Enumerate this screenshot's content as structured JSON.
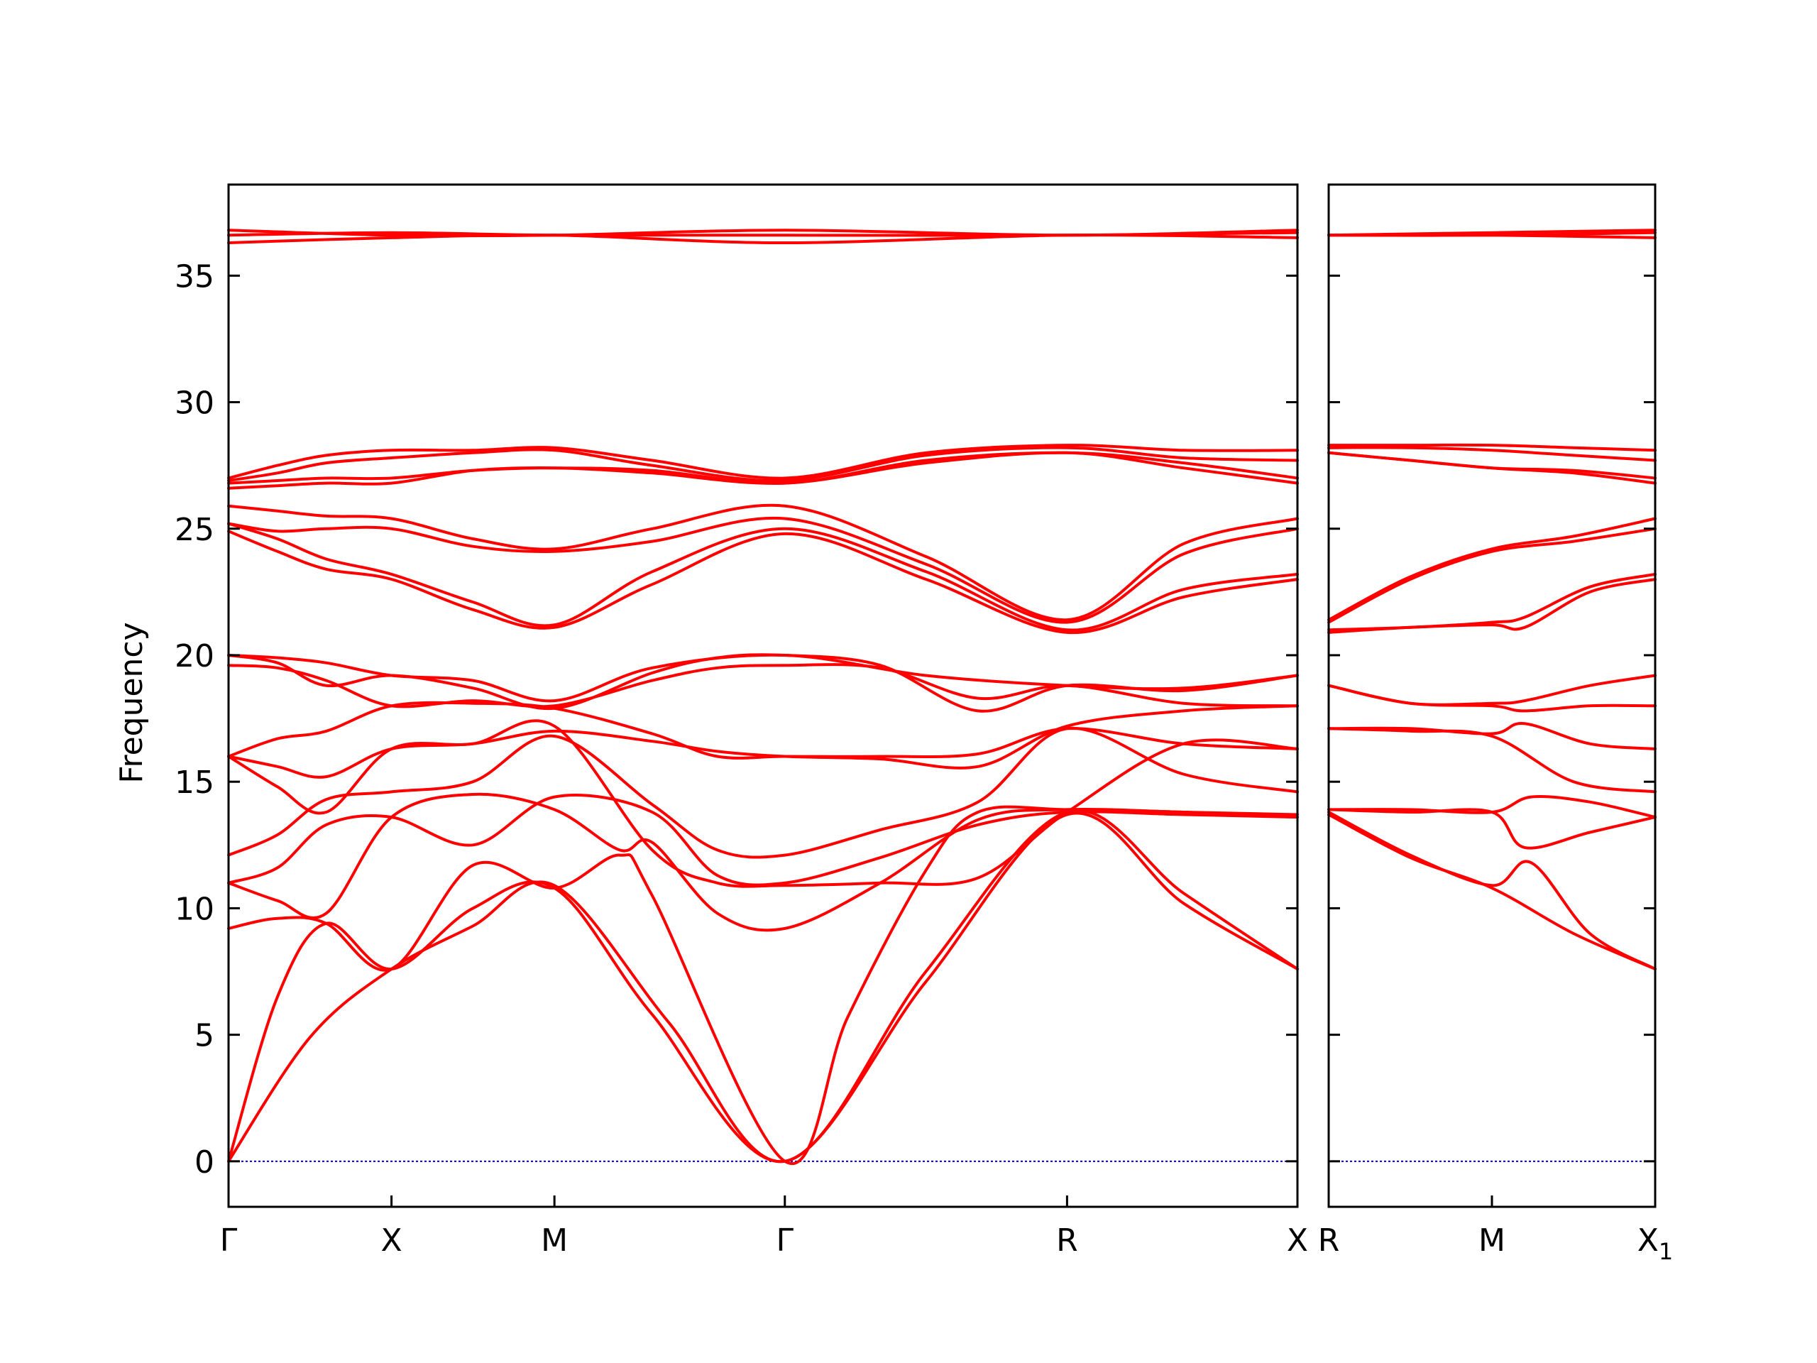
{
  "chart_data": {
    "type": "line",
    "ylabel": "Frequency",
    "ylim": [
      -1.8,
      38.6
    ],
    "yticks": [
      0,
      5,
      10,
      15,
      20,
      25,
      30,
      35
    ],
    "zero_line_color": "#0000cc",
    "band_color": "#ff0000",
    "panels": [
      {
        "id": "left",
        "xticks": [
          {
            "label": "Γ",
            "sub": "",
            "x": 0
          },
          {
            "label": "X",
            "sub": "",
            "x": 0.5
          },
          {
            "label": "M",
            "sub": "",
            "x": 1.0
          },
          {
            "label": "Γ",
            "sub": "",
            "x": 1.707
          },
          {
            "label": "R",
            "sub": "",
            "x": 2.573
          },
          {
            "label": "X",
            "sub": "",
            "x": 3.28
          }
        ],
        "xlim": [
          0,
          3.28
        ],
        "bands": [
          {
            "x": [
              0,
              0.25,
              0.5,
              0.75,
              1.0,
              1.35,
              1.707,
              2.14,
              2.573,
              2.93,
              3.28
            ],
            "y": [
              0,
              4.9,
              7.6,
              9.3,
              10.9,
              5.5,
              0,
              7.1,
              13.7,
              10.2,
              7.6
            ]
          },
          {
            "x": [
              0,
              0.15,
              0.3,
              0.5,
              0.75,
              1.0,
              1.3,
              1.707,
              2.14,
              2.573,
              2.93,
              3.28
            ],
            "y": [
              0,
              6.5,
              9.4,
              7.6,
              10,
              10.8,
              5.8,
              0,
              7.5,
              13.8,
              10.6,
              7.6
            ]
          },
          {
            "x": [
              0,
              0.15,
              0.3,
              0.5,
              0.75,
              1.0,
              1.2,
              1.3,
              1.707,
              1.9,
              2.14,
              2.3,
              2.573,
              2.93,
              3.28
            ],
            "y": [
              9.2,
              9.6,
              9.4,
              7.6,
              11.7,
              10.8,
              12.1,
              10.5,
              0,
              5.7,
              11.5,
              13.8,
              13.9,
              13.8,
              13.6
            ]
          },
          {
            "x": [
              0,
              0.15,
              0.3,
              0.5,
              0.75,
              1.0,
              1.2,
              1.3,
              1.5,
              1.707,
              2.0,
              2.3,
              2.573,
              2.93,
              3.28
            ],
            "y": [
              11.0,
              10.3,
              9.8,
              13.6,
              14.5,
              13.9,
              12.3,
              12.6,
              9.8,
              9.2,
              11.0,
              13.5,
              13.9,
              13.8,
              13.7
            ]
          },
          {
            "x": [
              0,
              0.15,
              0.3,
              0.5,
              0.75,
              1.0,
              1.3,
              1.5,
              1.707,
              2.0,
              2.3,
              2.573,
              2.93,
              3.28
            ],
            "y": [
              11.0,
              11.6,
              13.3,
              13.6,
              12.5,
              14.4,
              13.8,
              11.3,
              11.0,
              12.0,
              13.3,
              13.8,
              13.7,
              13.6
            ]
          },
          {
            "x": [
              0,
              0.15,
              0.3,
              0.5,
              0.75,
              1.0,
              1.3,
              1.5,
              1.707,
              2.0,
              2.3,
              2.573,
              2.93,
              3.28
            ],
            "y": [
              12.1,
              12.9,
              14.3,
              14.6,
              15.0,
              16.8,
              14.1,
              12.3,
              12.1,
              13.1,
              14.2,
              17.1,
              15.3,
              14.6
            ]
          },
          {
            "x": [
              0,
              0.15,
              0.3,
              0.5,
              0.75,
              1.0,
              1.3,
              1.5,
              1.707,
              2.0,
              2.3,
              2.573,
              2.93,
              3.28
            ],
            "y": [
              16.0,
              14.8,
              13.8,
              16.3,
              16.5,
              17.2,
              12.3,
              11.0,
              10.9,
              11.0,
              11.2,
              13.8,
              16.5,
              16.3
            ]
          },
          {
            "x": [
              0,
              0.15,
              0.3,
              0.5,
              0.75,
              1.0,
              1.3,
              1.5,
              1.707,
              2.0,
              2.3,
              2.573,
              2.93,
              3.28
            ],
            "y": [
              16.0,
              15.6,
              15.2,
              16.3,
              16.5,
              17.0,
              16.6,
              16.2,
              16.0,
              15.9,
              15.6,
              17.2,
              17.8,
              18.0
            ]
          },
          {
            "x": [
              0,
              0.15,
              0.3,
              0.5,
              0.75,
              1.0,
              1.3,
              1.5,
              1.707,
              2.0,
              2.3,
              2.573,
              2.93,
              3.28
            ],
            "y": [
              16.0,
              16.7,
              17.0,
              18.0,
              18.1,
              17.9,
              16.9,
              16.0,
              16.0,
              16.0,
              16.1,
              17.1,
              16.5,
              16.3
            ]
          },
          {
            "x": [
              0,
              0.15,
              0.3,
              0.5,
              0.75,
              1.0,
              1.3,
              1.5,
              1.707,
              2.0,
              2.3,
              2.573,
              2.93,
              3.28
            ],
            "y": [
              19.6,
              19.5,
              19.0,
              18.0,
              18.2,
              18.0,
              19.0,
              19.5,
              19.6,
              19.5,
              18.3,
              18.8,
              18.1,
              18.0
            ]
          },
          {
            "x": [
              0,
              0.15,
              0.3,
              0.5,
              0.75,
              1.0,
              1.3,
              1.5,
              1.707,
              2.0,
              2.3,
              2.573,
              2.93,
              3.28
            ],
            "y": [
              20.0,
              19.7,
              18.8,
              19.2,
              18.7,
              17.9,
              19.3,
              19.9,
              20.0,
              19.6,
              17.8,
              18.8,
              18.6,
              19.2
            ]
          },
          {
            "x": [
              0,
              0.15,
              0.3,
              0.5,
              0.75,
              1.0,
              1.3,
              1.707,
              2.14,
              2.573,
              2.93,
              3.28
            ],
            "y": [
              20.0,
              19.9,
              19.7,
              19.2,
              19.0,
              18.2,
              19.5,
              20.0,
              19.2,
              18.8,
              18.7,
              19.2
            ]
          },
          {
            "x": [
              0,
              0.15,
              0.3,
              0.5,
              0.75,
              1.0,
              1.3,
              1.707,
              2.14,
              2.573,
              2.93,
              3.28
            ],
            "y": [
              24.9,
              24.1,
              23.4,
              23.0,
              21.8,
              21.1,
              22.8,
              24.8,
              23.0,
              20.9,
              22.3,
              23.0
            ]
          },
          {
            "x": [
              0,
              0.15,
              0.3,
              0.5,
              0.75,
              1.0,
              1.3,
              1.707,
              2.14,
              2.573,
              2.93,
              3.28
            ],
            "y": [
              25.2,
              24.6,
              23.8,
              23.2,
              22.1,
              21.2,
              23.3,
              25.0,
              23.3,
              21.0,
              22.6,
              23.2
            ]
          },
          {
            "x": [
              0,
              0.15,
              0.3,
              0.5,
              0.75,
              1.0,
              1.3,
              1.707,
              2.14,
              2.573,
              2.93,
              3.28
            ],
            "y": [
              25.2,
              24.9,
              25.0,
              25.0,
              24.3,
              24.1,
              24.5,
              25.4,
              23.6,
              21.3,
              24.0,
              25.0
            ]
          },
          {
            "x": [
              0,
              0.15,
              0.3,
              0.5,
              0.75,
              1.0,
              1.3,
              1.707,
              2.14,
              2.573,
              2.93,
              3.28
            ],
            "y": [
              25.9,
              25.7,
              25.5,
              25.4,
              24.6,
              24.2,
              25.0,
              25.9,
              23.9,
              21.4,
              24.4,
              25.4
            ]
          },
          {
            "x": [
              0,
              0.15,
              0.3,
              0.5,
              0.75,
              1.0,
              1.3,
              1.707,
              2.14,
              2.573,
              2.93,
              3.28
            ],
            "y": [
              26.6,
              26.7,
              26.8,
              26.8,
              27.3,
              27.4,
              27.2,
              26.8,
              27.6,
              28.0,
              27.4,
              26.8
            ]
          },
          {
            "x": [
              0,
              0.15,
              0.3,
              0.5,
              0.75,
              1.0,
              1.3,
              1.707,
              2.14,
              2.573,
              2.93,
              3.28
            ],
            "y": [
              26.8,
              26.9,
              27.0,
              27.0,
              27.3,
              27.4,
              27.3,
              26.8,
              27.7,
              28.0,
              27.6,
              27.0
            ]
          },
          {
            "x": [
              0,
              0.15,
              0.3,
              0.5,
              0.75,
              1.0,
              1.3,
              1.707,
              2.14,
              2.573,
              2.93,
              3.28
            ],
            "y": [
              26.9,
              27.2,
              27.6,
              27.8,
              28.0,
              28.1,
              27.5,
              26.9,
              27.9,
              28.2,
              27.8,
              27.7
            ]
          },
          {
            "x": [
              0,
              0.15,
              0.3,
              0.5,
              0.75,
              1.0,
              1.3,
              1.707,
              2.14,
              2.573,
              2.93,
              3.28
            ],
            "y": [
              27.0,
              27.5,
              27.9,
              28.1,
              28.1,
              28.2,
              27.7,
              27.0,
              28.0,
              28.3,
              28.1,
              28.1
            ]
          },
          {
            "x": [
              0,
              0.5,
              1.0,
              1.707,
              2.573,
              3.28
            ],
            "y": [
              36.3,
              36.5,
              36.6,
              36.3,
              36.6,
              36.5
            ]
          },
          {
            "x": [
              0,
              0.5,
              1.0,
              1.707,
              2.573,
              3.28
            ],
            "y": [
              36.6,
              36.7,
              36.6,
              36.6,
              36.6,
              36.7
            ]
          },
          {
            "x": [
              0,
              0.5,
              1.0,
              1.707,
              2.573,
              3.28
            ],
            "y": [
              36.8,
              36.6,
              36.6,
              36.8,
              36.6,
              36.8
            ]
          }
        ]
      },
      {
        "id": "right",
        "xticks": [
          {
            "label": "R",
            "sub": "",
            "x": 0
          },
          {
            "label": "M",
            "sub": "",
            "x": 0.5
          },
          {
            "label": "X",
            "sub": "1",
            "x": 1.0
          }
        ],
        "xlim": [
          0,
          1.0
        ],
        "bands": [
          {
            "x": [
              0,
              0.25,
              0.5,
              0.75,
              1.0
            ],
            "y": [
              13.7,
              12.0,
              10.8,
              9.0,
              7.6
            ]
          },
          {
            "x": [
              0,
              0.25,
              0.5,
              0.62,
              0.8,
              1.0
            ],
            "y": [
              13.8,
              12.1,
              10.9,
              11.8,
              9.0,
              7.6
            ]
          },
          {
            "x": [
              0,
              0.25,
              0.5,
              0.6,
              0.8,
              1.0
            ],
            "y": [
              13.9,
              13.8,
              13.8,
              12.4,
              13.0,
              13.6
            ]
          },
          {
            "x": [
              0,
              0.25,
              0.5,
              0.62,
              0.8,
              1.0
            ],
            "y": [
              13.9,
              13.9,
              13.8,
              14.4,
              14.2,
              13.6
            ]
          },
          {
            "x": [
              0,
              0.25,
              0.5,
              0.75,
              1.0
            ],
            "y": [
              17.1,
              17.0,
              16.8,
              15.0,
              14.6
            ]
          },
          {
            "x": [
              0,
              0.25,
              0.5,
              0.6,
              0.8,
              1.0
            ],
            "y": [
              17.1,
              17.1,
              16.9,
              17.3,
              16.5,
              16.3
            ]
          },
          {
            "x": [
              0,
              0.25,
              0.5,
              0.6,
              0.8,
              1.0
            ],
            "y": [
              18.8,
              18.1,
              18.0,
              17.8,
              18.0,
              18.0
            ]
          },
          {
            "x": [
              0,
              0.25,
              0.5,
              0.6,
              0.8,
              1.0
            ],
            "y": [
              18.8,
              18.1,
              18.1,
              18.2,
              18.8,
              19.2
            ]
          },
          {
            "x": [
              0,
              0.25,
              0.5,
              0.6,
              0.8,
              1.0
            ],
            "y": [
              20.9,
              21.1,
              21.2,
              21.1,
              22.5,
              23.0
            ]
          },
          {
            "x": [
              0,
              0.25,
              0.5,
              0.6,
              0.8,
              1.0
            ],
            "y": [
              21.0,
              21.1,
              21.3,
              21.5,
              22.7,
              23.2
            ]
          },
          {
            "x": [
              0,
              0.25,
              0.5,
              0.75,
              1.0
            ],
            "y": [
              21.3,
              23.0,
              24.1,
              24.5,
              25.0
            ]
          },
          {
            "x": [
              0,
              0.25,
              0.5,
              0.75,
              1.0
            ],
            "y": [
              21.4,
              23.1,
              24.2,
              24.7,
              25.4
            ]
          },
          {
            "x": [
              0,
              0.25,
              0.5,
              0.75,
              1.0
            ],
            "y": [
              28.0,
              27.7,
              27.4,
              27.2,
              26.8
            ]
          },
          {
            "x": [
              0,
              0.25,
              0.5,
              0.75,
              1.0
            ],
            "y": [
              28.0,
              27.7,
              27.4,
              27.3,
              27.0
            ]
          },
          {
            "x": [
              0,
              0.25,
              0.5,
              0.75,
              1.0
            ],
            "y": [
              28.2,
              28.2,
              28.1,
              27.9,
              27.7
            ]
          },
          {
            "x": [
              0,
              0.25,
              0.5,
              0.75,
              1.0
            ],
            "y": [
              28.3,
              28.3,
              28.3,
              28.2,
              28.1
            ]
          },
          {
            "x": [
              0,
              0.5,
              1.0
            ],
            "y": [
              36.6,
              36.6,
              36.5
            ]
          },
          {
            "x": [
              0,
              0.5,
              1.0
            ],
            "y": [
              36.6,
              36.6,
              36.7
            ]
          },
          {
            "x": [
              0,
              0.5,
              1.0
            ],
            "y": [
              36.6,
              36.7,
              36.8
            ]
          }
        ]
      }
    ]
  }
}
